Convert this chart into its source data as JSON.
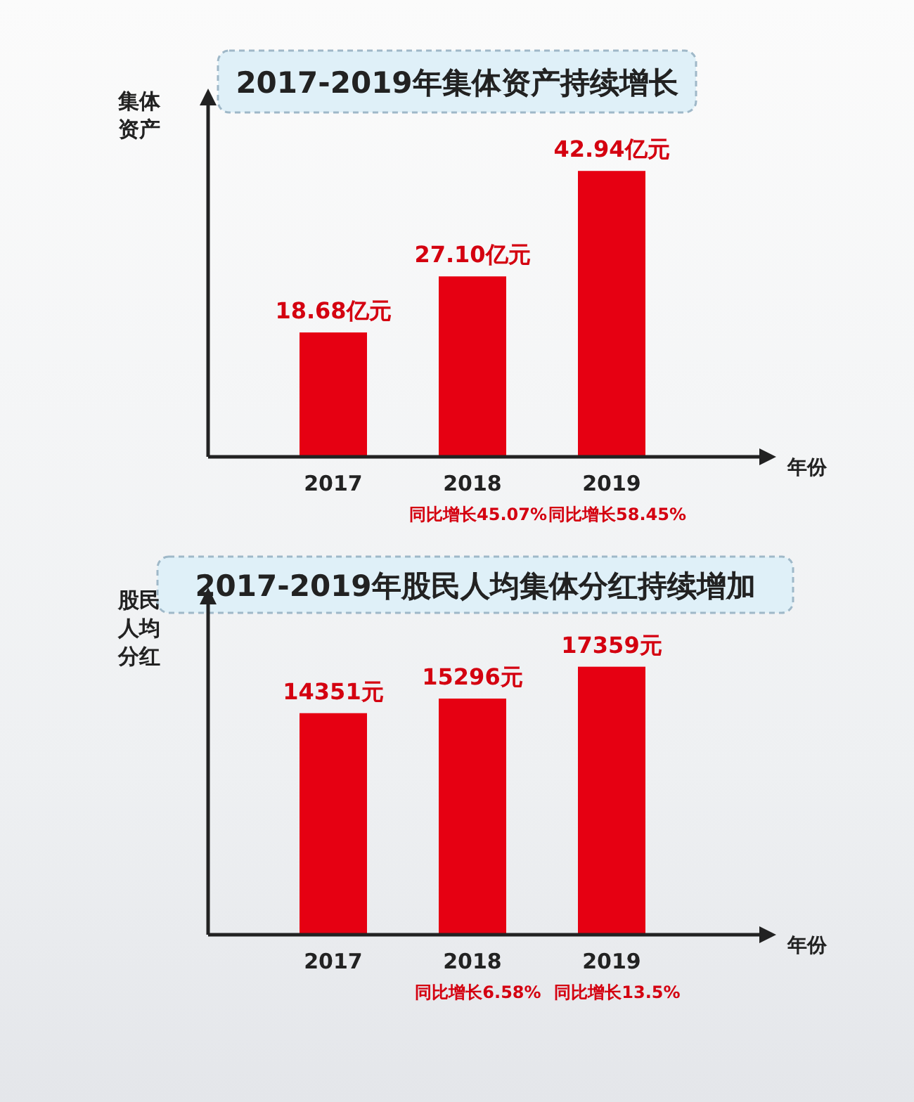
{
  "chart_data": [
    {
      "type": "bar",
      "title": "2017-2019年集体资产持续增长",
      "xlabel": "年份",
      "ylabel": "集体资产",
      "categories": [
        "2017",
        "2018",
        "2019"
      ],
      "values": [
        18.68,
        27.1,
        42.94
      ],
      "value_labels": [
        "18.68亿元",
        "27.10亿元",
        "42.94亿元"
      ],
      "color": "#e60012",
      "tick_labels": "x",
      "annotations": [
        "同比增长45.07%",
        "同比增长58.45%"
      ]
    },
    {
      "type": "bar",
      "title": "2017-2019年股民人均集体分红持续增加",
      "xlabel": "年份",
      "ylabel": "股民人均分红",
      "categories": [
        "2017",
        "2018",
        "2019"
      ],
      "values": [
        14351,
        15296,
        17359
      ],
      "value_labels": [
        "14351元",
        "15296元",
        "17359元"
      ],
      "color": "#e60012",
      "tick_labels": "x",
      "annotations": [
        "同比增长6.58%",
        "同比增长13.5%"
      ]
    }
  ]
}
